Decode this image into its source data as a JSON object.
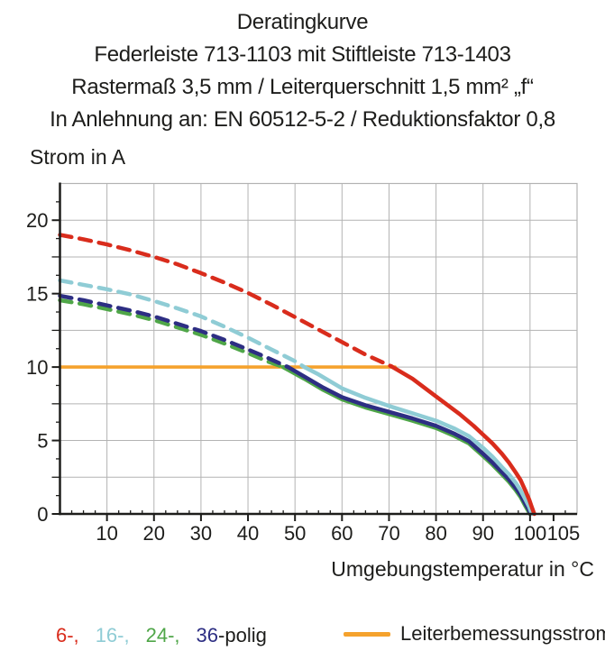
{
  "title_block": {
    "line1": "Deratingkurve",
    "line2": "Federleiste 713-1103 mit Stiftleiste 713-1403",
    "line3": "Rastermaß 3,5 mm / Leiterquerschnitt 1,5 mm² „f“",
    "line4": "In Anlehnung an: EN 60512-5-2 / Reduktionsfaktor 0,8"
  },
  "axis_titles": {
    "y": "Strom in A",
    "x": "Umgebungstemperatur in °C"
  },
  "legend": {
    "items": [
      {
        "label": "6-,",
        "color": "#d92c1c"
      },
      {
        "label": "16-,",
        "color": "#8fccd5"
      },
      {
        "label": "24-,",
        "color": "#4fa648"
      },
      {
        "label": "36",
        "color": "#2d2e83"
      },
      {
        "label": "-polig",
        "color": "#1d1d1b"
      }
    ],
    "rated": {
      "label": "Leiterbemessungsstrom",
      "color": "#f5a22d"
    }
  },
  "chart_data": {
    "type": "line",
    "title": "Deratingkurve",
    "xlabel": "Umgebungstemperatur in °C",
    "ylabel": "Strom in A",
    "xlim": [
      0,
      110
    ],
    "ylim": [
      0,
      22.5
    ],
    "grid": true,
    "x_gridlines": [
      10,
      20,
      30,
      40,
      50,
      60,
      70,
      80,
      90,
      100
    ],
    "y_grid_step": 2.5,
    "x_minor_step": 2.5,
    "y_minor_step": 1.25,
    "dash_pattern": "13 9",
    "colors": {
      "grid": "#b3b3b3",
      "axis": "#1d1d1b"
    },
    "x_ticks": [
      {
        "v": 10,
        "label": "10",
        "dx": 0
      },
      {
        "v": 20,
        "label": "20",
        "dx": 0
      },
      {
        "v": 30,
        "label": "30",
        "dx": 0
      },
      {
        "v": 40,
        "label": "40",
        "dx": 0
      },
      {
        "v": 50,
        "label": "50",
        "dx": 0
      },
      {
        "v": 60,
        "label": "60",
        "dx": 0
      },
      {
        "v": 70,
        "label": "70",
        "dx": 0
      },
      {
        "v": 80,
        "label": "80",
        "dx": 0
      },
      {
        "v": 90,
        "label": "90",
        "dx": 0
      },
      {
        "v": 100,
        "label": "100",
        "dx": 0
      },
      {
        "v": 105,
        "label": "105",
        "dx": 11
      }
    ],
    "y_ticks": [
      {
        "v": 0,
        "label": "0"
      },
      {
        "v": 5,
        "label": "5"
      },
      {
        "v": 10,
        "label": "10"
      },
      {
        "v": 15,
        "label": "15"
      },
      {
        "v": 20,
        "label": "20"
      }
    ],
    "series": [
      {
        "id": "leiterbemessungsstrom",
        "name": "Leiterbemessungsstrom",
        "color": "#f5a22d",
        "width": 3.6,
        "points": [
          [
            0,
            10
          ],
          [
            71.3,
            10
          ]
        ]
      },
      {
        "id": "24-polig",
        "name": "24-polig",
        "color": "#4fa648",
        "width": 4.5,
        "dash_until": 47.5,
        "points": [
          [
            0,
            14.55
          ],
          [
            5,
            14.28
          ],
          [
            10,
            13.95
          ],
          [
            15,
            13.6
          ],
          [
            20,
            13.2
          ],
          [
            25,
            12.7
          ],
          [
            30,
            12.2
          ],
          [
            35,
            11.6
          ],
          [
            40,
            10.95
          ],
          [
            44,
            10.4
          ],
          [
            47.5,
            10.0
          ],
          [
            52,
            9.2
          ],
          [
            56,
            8.45
          ],
          [
            60,
            7.8
          ],
          [
            65,
            7.25
          ],
          [
            70,
            6.8
          ],
          [
            75,
            6.35
          ],
          [
            80,
            5.85
          ],
          [
            84,
            5.3
          ],
          [
            87,
            4.8
          ],
          [
            90,
            3.95
          ],
          [
            92,
            3.35
          ],
          [
            94,
            2.7
          ],
          [
            95.5,
            2.2
          ],
          [
            97,
            1.6
          ],
          [
            98,
            1.15
          ],
          [
            99,
            0.55
          ],
          [
            99.6,
            0.2
          ],
          [
            100,
            0
          ]
        ]
      },
      {
        "id": "36-polig",
        "name": "36-polig",
        "color": "#2d2e83",
        "width": 4.5,
        "dash_until": 48.5,
        "points": [
          [
            0,
            14.85
          ],
          [
            5,
            14.55
          ],
          [
            10,
            14.2
          ],
          [
            15,
            13.85
          ],
          [
            20,
            13.45
          ],
          [
            25,
            12.95
          ],
          [
            30,
            12.45
          ],
          [
            35,
            11.85
          ],
          [
            40,
            11.2
          ],
          [
            44,
            10.65
          ],
          [
            48.5,
            10.0
          ],
          [
            52,
            9.35
          ],
          [
            56,
            8.6
          ],
          [
            60,
            7.95
          ],
          [
            65,
            7.4
          ],
          [
            70,
            6.95
          ],
          [
            75,
            6.5
          ],
          [
            80,
            6.0
          ],
          [
            84,
            5.45
          ],
          [
            87,
            4.95
          ],
          [
            90,
            4.1
          ],
          [
            92,
            3.5
          ],
          [
            94,
            2.85
          ],
          [
            95.5,
            2.35
          ],
          [
            97,
            1.75
          ],
          [
            98,
            1.3
          ],
          [
            99,
            0.7
          ],
          [
            99.7,
            0.3
          ],
          [
            100.1,
            0
          ]
        ]
      },
      {
        "id": "16-polig",
        "name": "16-polig",
        "color": "#8fccd5",
        "width": 4.5,
        "dash_until": 52,
        "points": [
          [
            0,
            15.9
          ],
          [
            5,
            15.6
          ],
          [
            10,
            15.3
          ],
          [
            15,
            14.95
          ],
          [
            20,
            14.5
          ],
          [
            25,
            14.0
          ],
          [
            30,
            13.45
          ],
          [
            35,
            12.75
          ],
          [
            40,
            12.0
          ],
          [
            45,
            11.2
          ],
          [
            50,
            10.4
          ],
          [
            52,
            10.0
          ],
          [
            55,
            9.5
          ],
          [
            60,
            8.55
          ],
          [
            65,
            7.9
          ],
          [
            70,
            7.35
          ],
          [
            75,
            6.85
          ],
          [
            80,
            6.35
          ],
          [
            84,
            5.8
          ],
          [
            87,
            5.3
          ],
          [
            90,
            4.5
          ],
          [
            92,
            3.9
          ],
          [
            94,
            3.2
          ],
          [
            95.5,
            2.7
          ],
          [
            97,
            2.1
          ],
          [
            98,
            1.6
          ],
          [
            99,
            1.0
          ],
          [
            99.8,
            0.5
          ],
          [
            100.4,
            0
          ]
        ]
      },
      {
        "id": "6-polig",
        "name": "6-polig",
        "color": "#d92c1c",
        "width": 4.5,
        "dash_until": 70.5,
        "points": [
          [
            0,
            19.0
          ],
          [
            5,
            18.7
          ],
          [
            10,
            18.35
          ],
          [
            15,
            17.95
          ],
          [
            20,
            17.5
          ],
          [
            25,
            17.0
          ],
          [
            30,
            16.4
          ],
          [
            35,
            15.75
          ],
          [
            40,
            15.05
          ],
          [
            45,
            14.25
          ],
          [
            50,
            13.4
          ],
          [
            55,
            12.55
          ],
          [
            60,
            11.7
          ],
          [
            65,
            10.85
          ],
          [
            70.5,
            10.05
          ],
          [
            75,
            9.2
          ],
          [
            80,
            8.0
          ],
          [
            85,
            6.8
          ],
          [
            88,
            6.0
          ],
          [
            90,
            5.4
          ],
          [
            92,
            4.8
          ],
          [
            94,
            4.1
          ],
          [
            95.5,
            3.5
          ],
          [
            97,
            2.8
          ],
          [
            98,
            2.3
          ],
          [
            99,
            1.6
          ],
          [
            99.8,
            1.0
          ],
          [
            100.4,
            0.45
          ],
          [
            100.9,
            0
          ]
        ]
      }
    ]
  }
}
